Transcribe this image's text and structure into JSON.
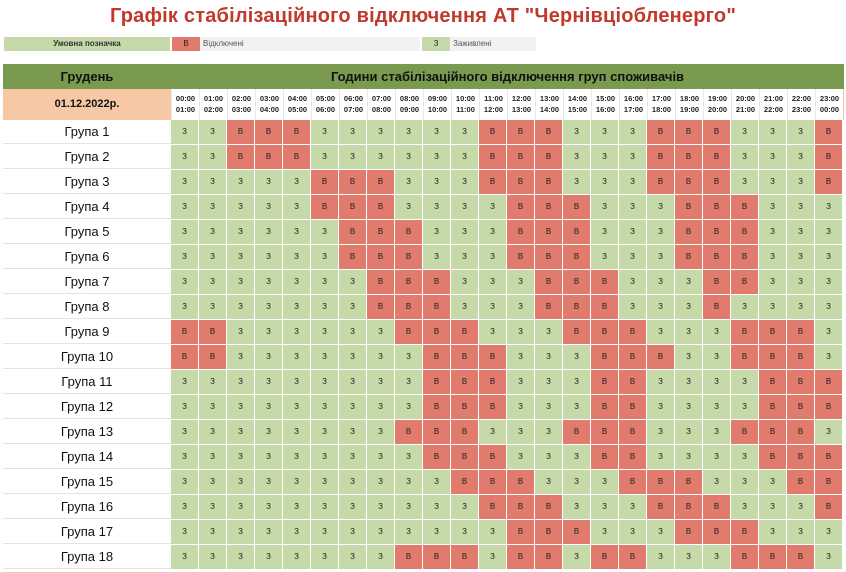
{
  "title": "Графік стабілізаційного відключення АТ \"Чернівціобленерго\"",
  "legend": {
    "label": "Умовна позначка",
    "off_code": "В",
    "off_label": "Відключені",
    "on_code": "З",
    "on_label": "Заживлені"
  },
  "colors": {
    "off": "#e07b6e",
    "on": "#c6d9a8",
    "header": "#7a9a4f",
    "date_bg": "#f6c8a6"
  },
  "header": {
    "month": "Грудень",
    "caption": "Години стабілізаційного відключення груп споживачів",
    "date": "01.12.2022р."
  },
  "hours": [
    [
      "00:00",
      "01:00"
    ],
    [
      "01:00",
      "02:00"
    ],
    [
      "02:00",
      "03:00"
    ],
    [
      "03:00",
      "04:00"
    ],
    [
      "04:00",
      "05:00"
    ],
    [
      "05:00",
      "06:00"
    ],
    [
      "06:00",
      "07:00"
    ],
    [
      "07:00",
      "08:00"
    ],
    [
      "08:00",
      "09:00"
    ],
    [
      "09:00",
      "10:00"
    ],
    [
      "10:00",
      "11:00"
    ],
    [
      "11:00",
      "12:00"
    ],
    [
      "12:00",
      "13:00"
    ],
    [
      "13:00",
      "14:00"
    ],
    [
      "14:00",
      "15:00"
    ],
    [
      "15:00",
      "16:00"
    ],
    [
      "16:00",
      "17:00"
    ],
    [
      "17:00",
      "18:00"
    ],
    [
      "18:00",
      "19:00"
    ],
    [
      "19:00",
      "20:00"
    ],
    [
      "20:00",
      "21:00"
    ],
    [
      "21:00",
      "22:00"
    ],
    [
      "22:00",
      "23:00"
    ],
    [
      "23:00",
      "00:00"
    ]
  ],
  "groups": [
    {
      "name": "Група 1",
      "schedule": "ЗЗВВВЗЗЗЗЗЗВВВЗЗЗВВВЗЗЗВ"
    },
    {
      "name": "Група 2",
      "schedule": "ЗЗВВВЗЗЗЗЗЗВВВЗЗЗВВВЗЗЗВ"
    },
    {
      "name": "Група 3",
      "schedule": "ЗЗЗЗЗВВВЗЗЗВВВЗЗЗВВВЗЗЗВ"
    },
    {
      "name": "Група 4",
      "schedule": "ЗЗЗЗЗВВВЗЗЗЗВВВЗЗЗВВВЗЗЗ"
    },
    {
      "name": "Група 5",
      "schedule": "ЗЗЗЗЗЗВВВЗЗЗВВВЗЗЗВВВЗЗЗ"
    },
    {
      "name": "Група 6",
      "schedule": "ЗЗЗЗЗЗВВВЗЗЗВВВЗЗЗВВВЗЗЗ"
    },
    {
      "name": "Група 7",
      "schedule": "ЗЗЗЗЗЗЗВВВЗЗЗВВВЗЗЗВВЗЗЗ"
    },
    {
      "name": "Група 8",
      "schedule": "ЗЗЗЗЗЗЗВВВЗЗЗВВВЗЗЗВЗЗЗЗ"
    },
    {
      "name": "Група 9",
      "schedule": "ВВЗЗЗЗЗЗВВВЗЗЗВВВЗЗЗВВВЗ"
    },
    {
      "name": "Група 10",
      "schedule": "ВВЗЗЗЗЗЗЗВВВЗЗЗВВВЗЗВВВЗ"
    },
    {
      "name": "Група 11",
      "schedule": "ЗЗЗЗЗЗЗЗЗВВВЗЗЗВВЗЗЗЗВВВ"
    },
    {
      "name": "Група 12",
      "schedule": "ЗЗЗЗЗЗЗЗЗВВВЗЗЗВВЗЗЗЗВВВ"
    },
    {
      "name": "Група 13",
      "schedule": "ЗЗЗЗЗЗЗЗВВВЗЗЗВВВЗЗЗВВВЗ"
    },
    {
      "name": "Група 14",
      "schedule": "ЗЗЗЗЗЗЗЗЗВВВЗЗЗВВЗЗЗЗВВВ"
    },
    {
      "name": "Група 15",
      "schedule": "ЗЗЗЗЗЗЗЗЗЗВВВЗЗЗВВВЗЗЗВВ"
    },
    {
      "name": "Група 16",
      "schedule": "ЗЗЗЗЗЗЗЗЗЗЗВВВЗЗЗВВВЗЗЗВ"
    },
    {
      "name": "Група 17",
      "schedule": "ЗЗЗЗЗЗЗЗЗЗЗЗВВВЗЗЗВВВЗЗЗ"
    },
    {
      "name": "Група 18",
      "schedule": "ЗЗЗЗЗЗЗЗВВВЗВВЗВВЗЗЗВВВЗ"
    }
  ]
}
